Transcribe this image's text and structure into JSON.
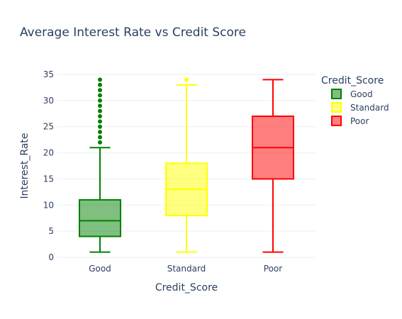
{
  "chart_data": {
    "type": "box",
    "title": "Average Interest Rate vs Credit Score",
    "xlabel": "Credit_Score",
    "ylabel": "Interest_Rate",
    "ylim": [
      0,
      35
    ],
    "yticks": [
      0,
      5,
      10,
      15,
      20,
      25,
      30,
      35
    ],
    "grid": true,
    "legend": {
      "title": "Credit_Score",
      "placement": "right"
    },
    "categories": [
      "Good",
      "Standard",
      "Poor"
    ],
    "series": [
      {
        "name": "Good",
        "color": "#008000",
        "fill": "rgba(0,128,0,0.5)",
        "min": 1,
        "q1": 4,
        "median": 7,
        "q3": 11,
        "max": 21,
        "outliers": [
          22,
          23,
          24,
          25,
          26,
          27,
          28,
          29,
          30,
          31,
          32,
          33,
          34
        ]
      },
      {
        "name": "Standard",
        "color": "#ffff00",
        "fill": "rgba(255,255,0,0.5)",
        "min": 1,
        "q1": 8,
        "median": 13,
        "q3": 18,
        "max": 33,
        "outliers": [
          34
        ]
      },
      {
        "name": "Poor",
        "color": "#ff0000",
        "fill": "rgba(255,0,0,0.5)",
        "min": 1,
        "q1": 15,
        "median": 21,
        "q3": 27,
        "max": 34,
        "outliers": []
      }
    ]
  }
}
